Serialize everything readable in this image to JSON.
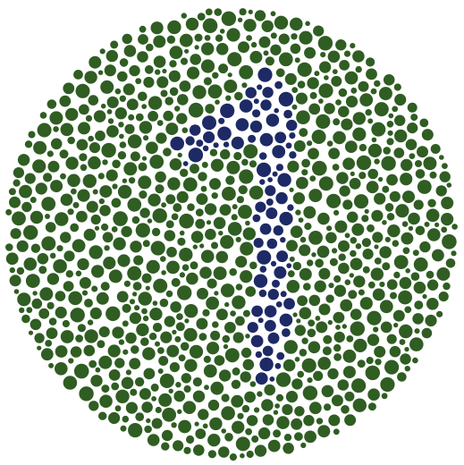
{
  "plate": {
    "figure": "1",
    "background_dot_color": "#2f5d22",
    "figure_dot_color": "#1e2a66",
    "canvas_color": "#ffffff"
  }
}
